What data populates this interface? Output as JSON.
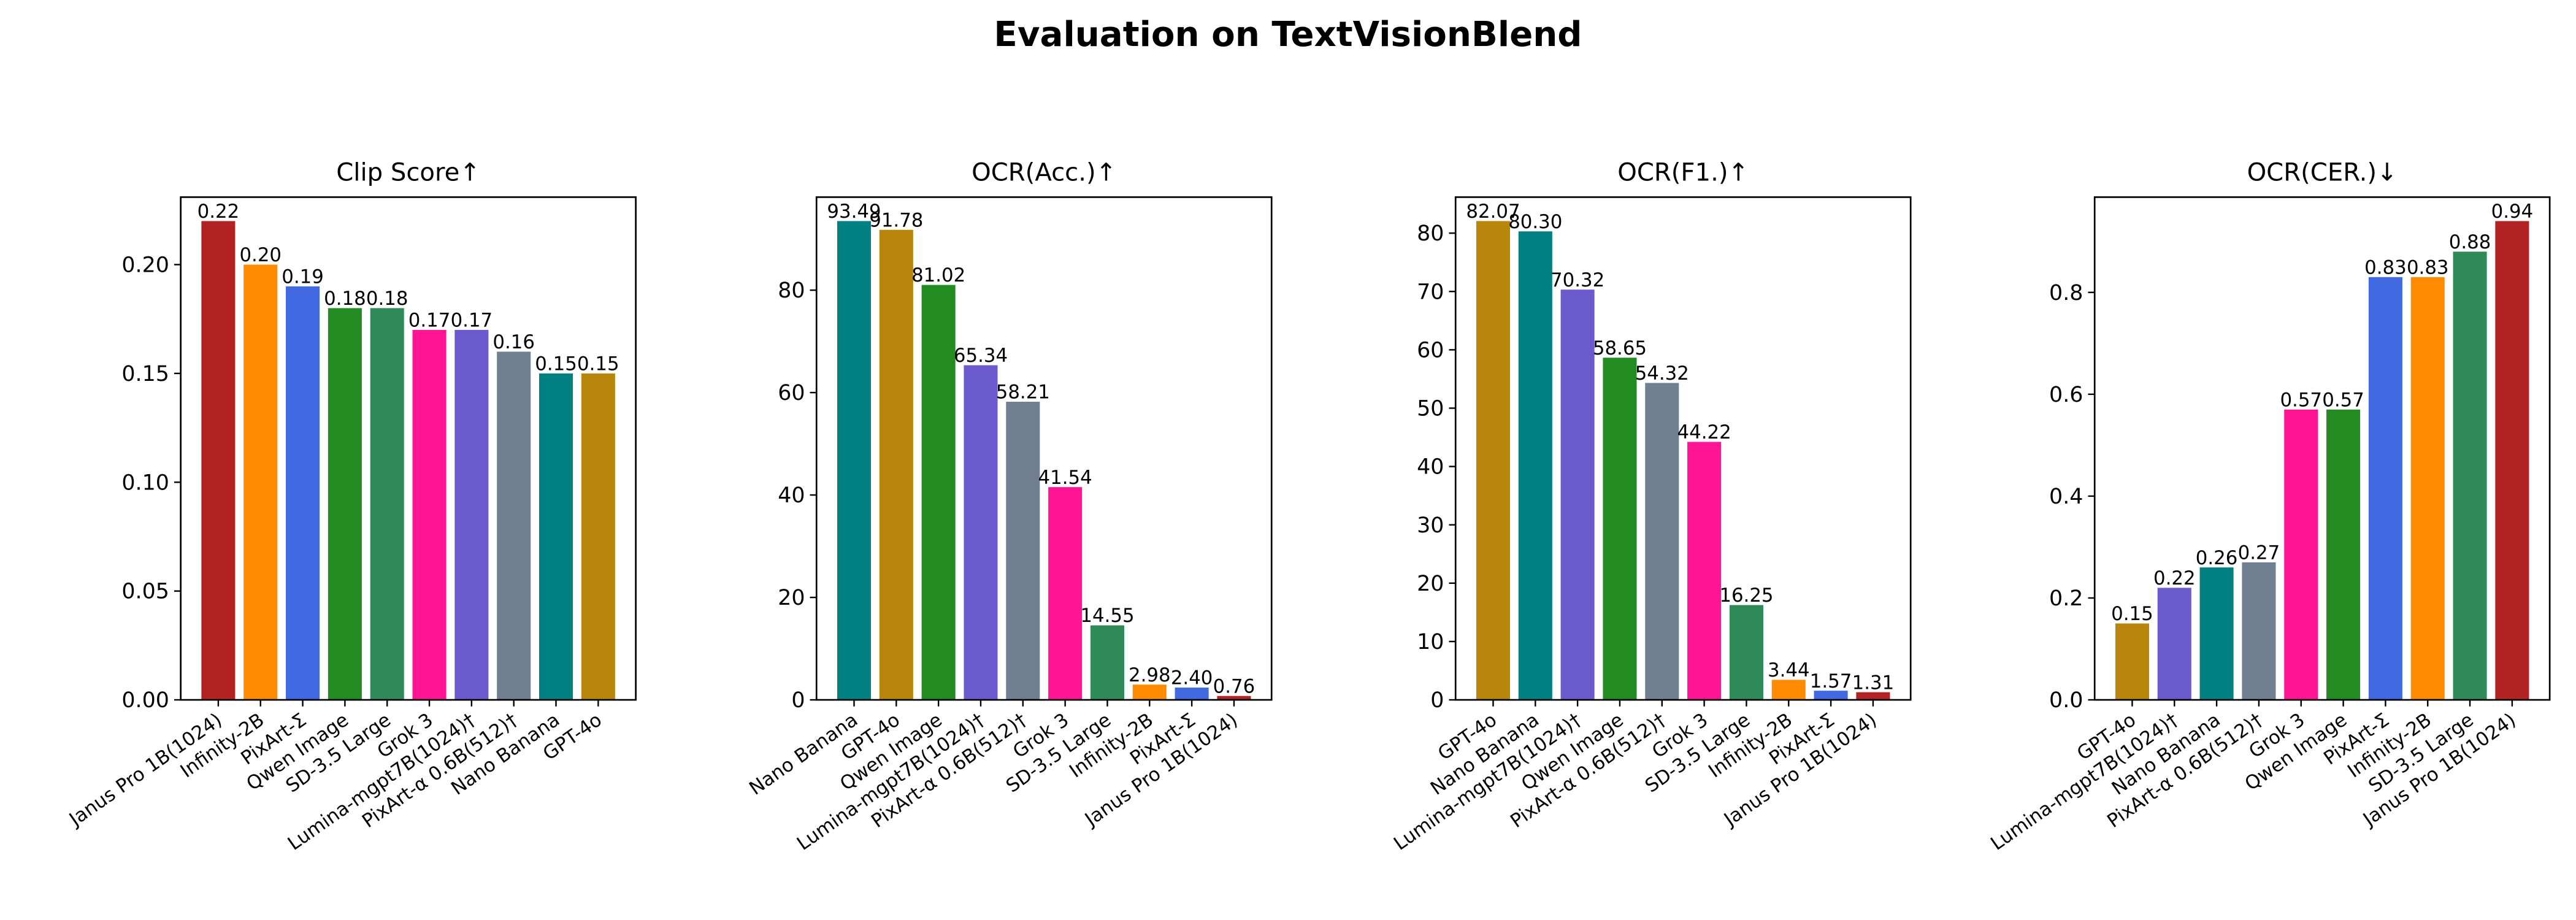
{
  "chart_data": {
    "title": "Evaluation on TextVisionBlend",
    "colors": {
      "Janus Pro 1B(1024)": "#b22222",
      "Infinity-2B": "#ff8c00",
      "PixArt-Σ": "#4169e1",
      "Qwen Image": "#228b22",
      "SD-3.5 Large": "#2e8b57",
      "Grok 3": "#ff1493",
      "Lumina-mgpt7B(1024)†": "#6a5acd",
      "PixArt-α 0.6B(512)†": "#708090",
      "Nano Banana": "#008080",
      "GPT-4o": "#b8860b"
    },
    "panels": [
      {
        "type": "bar",
        "title": "Clip Score↑",
        "categories": [
          "Janus Pro 1B(1024)",
          "Infinity-2B",
          "PixArt-Σ",
          "Qwen Image",
          "SD-3.5 Large",
          "Grok 3",
          "Lumina-mgpt7B(1024)†",
          "PixArt-α 0.6B(512)†",
          "Nano Banana",
          "GPT-4o"
        ],
        "values": [
          0.22,
          0.2,
          0.19,
          0.18,
          0.18,
          0.17,
          0.17,
          0.16,
          0.15,
          0.15
        ],
        "labels": [
          "0.22",
          "0.20",
          "0.19",
          "0.18",
          "0.18",
          "0.17",
          "0.17",
          "0.16",
          "0.15",
          "0.15"
        ],
        "ylim": [
          0,
          0.231
        ],
        "yticks": [
          0,
          0.05,
          0.1,
          0.15,
          0.2
        ],
        "ytick_labels": [
          "0.00",
          "0.05",
          "0.10",
          "0.15",
          "0.20"
        ]
      },
      {
        "type": "bar",
        "title": "OCR(Acc.)↑",
        "categories": [
          "Nano Banana",
          "GPT-4o",
          "Qwen Image",
          "Lumina-mgpt7B(1024)†",
          "PixArt-α 0.6B(512)†",
          "Grok 3",
          "SD-3.5 Large",
          "Infinity-2B",
          "PixArt-Σ",
          "Janus Pro 1B(1024)"
        ],
        "values": [
          93.49,
          91.78,
          81.02,
          65.34,
          58.21,
          41.54,
          14.55,
          2.98,
          2.4,
          0.76
        ],
        "labels": [
          "93.49",
          "91.78",
          "81.02",
          "65.34",
          "58.21",
          "41.54",
          "14.55",
          "2.98",
          "2.40",
          "0.76"
        ],
        "ylim": [
          0,
          98.16
        ],
        "yticks": [
          0,
          20,
          40,
          60,
          80
        ],
        "ytick_labels": [
          "0",
          "20",
          "40",
          "60",
          "80"
        ]
      },
      {
        "type": "bar",
        "title": "OCR(F1.)↑",
        "categories": [
          "GPT-4o",
          "Nano Banana",
          "Lumina-mgpt7B(1024)†",
          "Qwen Image",
          "PixArt-α 0.6B(512)†",
          "Grok 3",
          "SD-3.5 Large",
          "Infinity-2B",
          "PixArt-Σ",
          "Janus Pro 1B(1024)"
        ],
        "values": [
          82.07,
          80.3,
          70.32,
          58.65,
          54.32,
          44.22,
          16.25,
          3.44,
          1.57,
          1.31
        ],
        "labels": [
          "82.07",
          "80.30",
          "70.32",
          "58.65",
          "54.32",
          "44.22",
          "16.25",
          "3.44",
          "1.57",
          "1.31"
        ],
        "ylim": [
          0,
          86.17
        ],
        "yticks": [
          0,
          10,
          20,
          30,
          40,
          50,
          60,
          70,
          80
        ],
        "ytick_labels": [
          "0",
          "10",
          "20",
          "30",
          "40",
          "50",
          "60",
          "70",
          "80"
        ]
      },
      {
        "type": "bar",
        "title": "OCR(CER.)↓",
        "categories": [
          "GPT-4o",
          "Lumina-mgpt7B(1024)†",
          "Nano Banana",
          "PixArt-α 0.6B(512)†",
          "Grok 3",
          "Qwen Image",
          "PixArt-Σ",
          "Infinity-2B",
          "SD-3.5 Large",
          "Janus Pro 1B(1024)"
        ],
        "values": [
          0.15,
          0.22,
          0.26,
          0.27,
          0.57,
          0.57,
          0.83,
          0.83,
          0.88,
          0.94
        ],
        "labels": [
          "0.15",
          "0.22",
          "0.26",
          "0.27",
          "0.57",
          "0.57",
          "0.83",
          "0.83",
          "0.88",
          "0.94"
        ],
        "ylim": [
          0,
          0.987
        ],
        "yticks": [
          0,
          0.2,
          0.4,
          0.6,
          0.8
        ],
        "ytick_labels": [
          "0.0",
          "0.2",
          "0.4",
          "0.6",
          "0.8"
        ]
      }
    ]
  }
}
